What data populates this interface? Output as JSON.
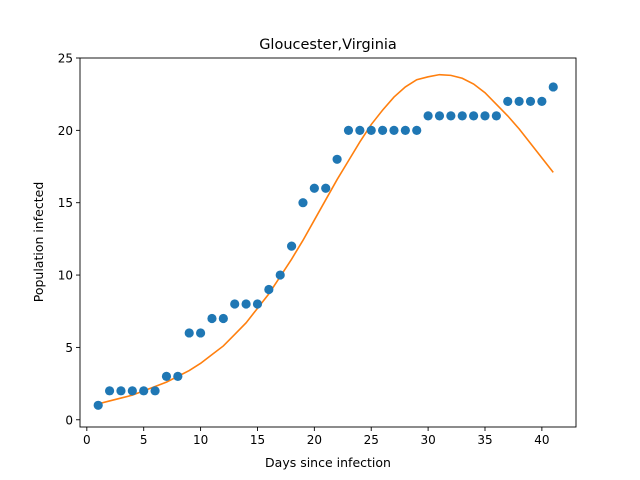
{
  "chart_data": {
    "type": "scatter",
    "title": "Gloucester,Virginia",
    "xlabel": "Days since infection",
    "ylabel": "Population infected",
    "xlim": [
      -0.6,
      43
    ],
    "ylim": [
      -0.5,
      25
    ],
    "xticks": [
      0,
      5,
      10,
      15,
      20,
      25,
      30,
      35,
      40
    ],
    "yticks": [
      0,
      5,
      10,
      15,
      20,
      25
    ],
    "grid": false,
    "colors": {
      "points": "#1f77b4",
      "fit": "#ff7f0e",
      "axes": "#000000"
    },
    "series": [
      {
        "kind": "scatter",
        "x": [
          1,
          2,
          3,
          4,
          5,
          6,
          7,
          8,
          9,
          10,
          11,
          12,
          13,
          14,
          15,
          16,
          17,
          18,
          19,
          20,
          21,
          22,
          23,
          24,
          25,
          26,
          27,
          28,
          29,
          30,
          31,
          32,
          33,
          34,
          35,
          36,
          37,
          38,
          39,
          40,
          41
        ],
        "y": [
          1,
          2,
          2,
          2,
          2,
          2,
          3,
          3,
          6,
          6,
          7,
          7,
          8,
          8,
          8,
          9,
          10,
          12,
          15,
          16,
          16,
          18,
          20,
          20,
          20,
          20,
          20,
          20,
          20,
          21,
          21,
          21,
          21,
          21,
          21,
          21,
          22,
          22,
          22,
          22,
          23
        ]
      },
      {
        "kind": "line",
        "x": [
          1,
          2,
          3,
          4,
          5,
          6,
          7,
          8,
          9,
          10,
          11,
          12,
          13,
          14,
          15,
          16,
          17,
          18,
          19,
          20,
          21,
          22,
          23,
          24,
          25,
          26,
          27,
          28,
          29,
          30,
          31,
          32,
          33,
          34,
          35,
          36,
          37,
          38,
          39,
          40,
          41
        ],
        "y": [
          1.1,
          1.3,
          1.5,
          1.7,
          2.0,
          2.3,
          2.6,
          3.0,
          3.4,
          3.9,
          4.5,
          5.1,
          5.9,
          6.7,
          7.7,
          8.7,
          9.9,
          11.1,
          12.4,
          13.8,
          15.2,
          16.6,
          17.9,
          19.2,
          20.4,
          21.4,
          22.3,
          23.0,
          23.5,
          23.7,
          23.85,
          23.8,
          23.6,
          23.2,
          22.6,
          21.8,
          21.0,
          20.1,
          19.1,
          18.1,
          17.1
        ]
      }
    ]
  }
}
